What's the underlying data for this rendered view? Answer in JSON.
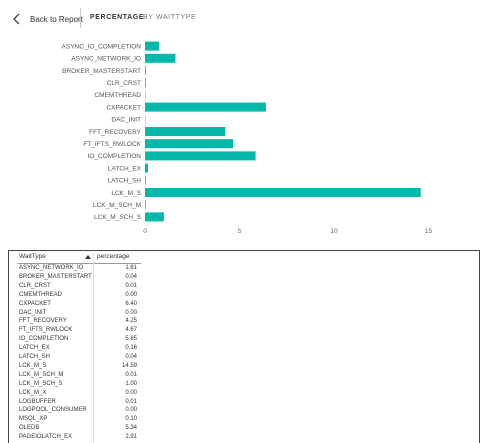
{
  "nav": {
    "back_label": "Back to Report",
    "tabs": [
      {
        "label": "PERCENTAGE",
        "active": true
      },
      {
        "label": "BY WAITTYPE",
        "active": false
      }
    ]
  },
  "chart_data": {
    "type": "bar",
    "orientation": "horizontal",
    "categories": [
      "ASYNC_IO_COMPLETION",
      "ASYNC_NETWORK_IO",
      "BROKER_MASTERSTART",
      "CLR_CRST",
      "CMEMTHREAD",
      "CXPACKET",
      "DAC_INIT",
      "FFT_RECOVERY",
      "FT_IFTS_RWLOCK",
      "IO_COMPLETION",
      "LATCH_EX",
      "LATCH_SH",
      "LCK_M_S",
      "LCK_M_SCH_M",
      "LCK_M_SCH_S"
    ],
    "values": [
      0.75,
      1.61,
      0.04,
      0.01,
      0.0,
      6.4,
      0.0,
      4.25,
      4.67,
      5.85,
      0.16,
      0.04,
      14.59,
      0.01,
      1.0
    ],
    "xlim": [
      0,
      16
    ],
    "xticks": [
      0,
      5,
      10,
      15
    ],
    "bar_color": "#01b8aa",
    "grid": false
  },
  "table": {
    "headers": {
      "wait_type": "WaitType",
      "percentage": "percentage"
    },
    "sort": "ascending",
    "rows": [
      {
        "wait_type": "ASYNC_NETWORK_IO",
        "percentage": "1.61"
      },
      {
        "wait_type": "BROKER_MASTERSTART",
        "percentage": "0.04"
      },
      {
        "wait_type": "CLR_CRST",
        "percentage": "0.01"
      },
      {
        "wait_type": "CMEMTHREAD",
        "percentage": "0.00"
      },
      {
        "wait_type": "CXPACKET",
        "percentage": "6.40"
      },
      {
        "wait_type": "DAC_INIT",
        "percentage": "0.00"
      },
      {
        "wait_type": "FFT_RECOVERY",
        "percentage": "4.25"
      },
      {
        "wait_type": "FT_IFTS_RWLOCK",
        "percentage": "4.67"
      },
      {
        "wait_type": "IO_COMPLETION",
        "percentage": "5.85"
      },
      {
        "wait_type": "LATCH_EX",
        "percentage": "0.16"
      },
      {
        "wait_type": "LATCH_SH",
        "percentage": "0.04"
      },
      {
        "wait_type": "LCK_M_S",
        "percentage": "14.59"
      },
      {
        "wait_type": "LCK_M_SCH_M",
        "percentage": "0.01"
      },
      {
        "wait_type": "LCK_M_SCH_S",
        "percentage": "1.00"
      },
      {
        "wait_type": "LCK_M_X",
        "percentage": "0.00"
      },
      {
        "wait_type": "LOGBUFFER",
        "percentage": "0.01"
      },
      {
        "wait_type": "LOGPOOL_CONSUMER",
        "percentage": "0.00"
      },
      {
        "wait_type": "MSQL_XP",
        "percentage": "0.10"
      },
      {
        "wait_type": "OLEDB",
        "percentage": "5.34"
      },
      {
        "wait_type": "PAGEIOLATCH_EX",
        "percentage": "2.91"
      }
    ]
  }
}
